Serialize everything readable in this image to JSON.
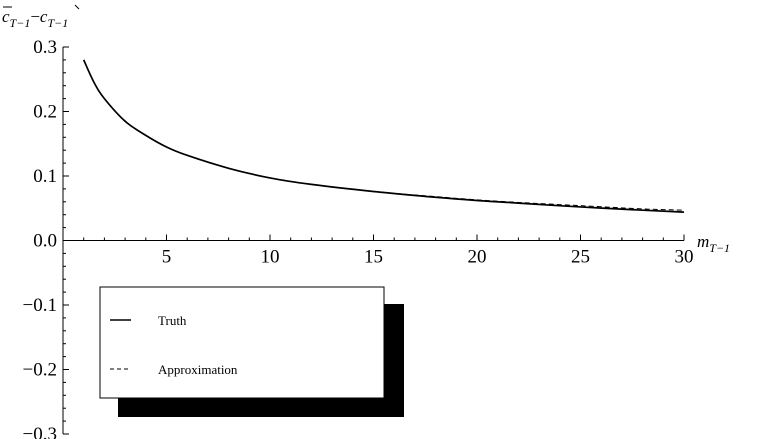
{
  "chart_data": {
    "type": "line",
    "xlabel": "m_{T−1}",
    "xlabel_main": "m",
    "xlabel_sub": "T−1",
    "ylabel_parts": [
      "c",
      "T−1",
      "−",
      "c",
      "T−1"
    ],
    "xlim": [
      0,
      30
    ],
    "ylim": [
      -0.3,
      0.3
    ],
    "x_ticks": [
      5,
      10,
      15,
      20,
      25,
      30
    ],
    "x_tick_labels": [
      "5",
      "10",
      "15",
      "20",
      "25",
      "30"
    ],
    "y_ticks": [
      -0.3,
      -0.2,
      -0.1,
      0.0,
      0.1,
      0.2,
      0.3
    ],
    "y_tick_labels": [
      "−0.3",
      "−0.2",
      "−0.1",
      "0.0",
      "0.1",
      "0.2",
      "0.3"
    ],
    "grid": false,
    "legend_position": "bottom-left",
    "series": [
      {
        "name": "Truth",
        "style": "solid",
        "color": "#000000",
        "x": [
          1,
          1.5,
          2,
          3,
          4,
          5,
          6,
          8,
          10,
          12,
          15,
          18,
          20,
          22,
          25,
          28,
          30
        ],
        "y": [
          0.28,
          0.245,
          0.22,
          0.185,
          0.163,
          0.145,
          0.132,
          0.112,
          0.097,
          0.087,
          0.076,
          0.067,
          0.062,
          0.058,
          0.052,
          0.047,
          0.044
        ]
      },
      {
        "name": "Approximation",
        "style": "dashed",
        "color": "#000000",
        "x": [
          1,
          1.5,
          2,
          3,
          4,
          5,
          6,
          8,
          10,
          12,
          15,
          18,
          20,
          22,
          25,
          28,
          30
        ],
        "y": [
          0.28,
          0.245,
          0.22,
          0.185,
          0.163,
          0.145,
          0.132,
          0.112,
          0.097,
          0.087,
          0.076,
          0.068,
          0.063,
          0.059,
          0.054,
          0.049,
          0.047
        ]
      }
    ]
  }
}
